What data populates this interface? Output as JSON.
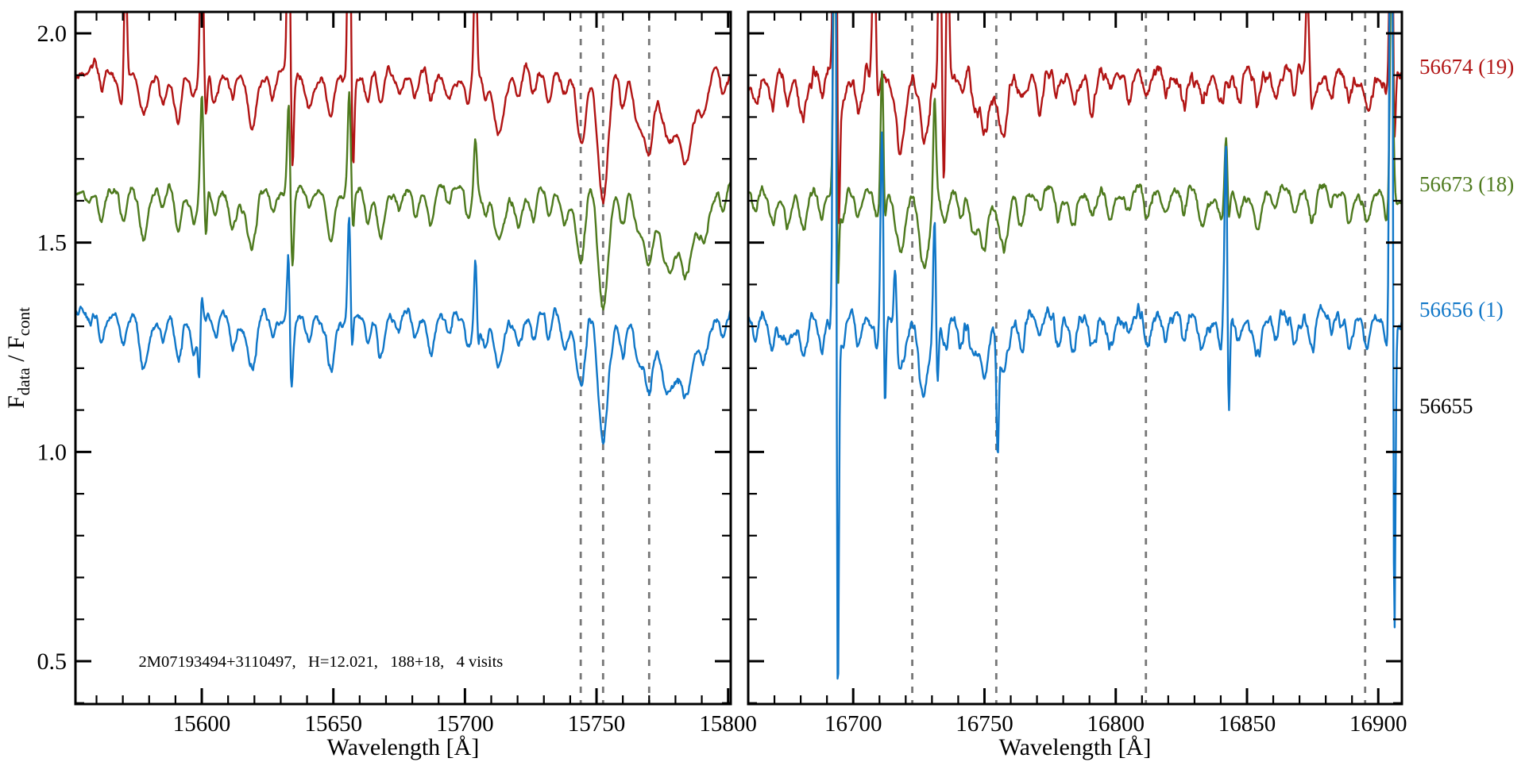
{
  "figure": {
    "background": "#ffffff",
    "axis_color": "#000000",
    "dashed_line_color": "#777777",
    "text_color": "#000000"
  },
  "chart_data": {
    "type": "line",
    "title": "",
    "xlabel": "Wavelength [Å]",
    "ylabel": "F_data / F_cont",
    "ylabel_rich": [
      {
        "t": "F",
        "sub": false
      },
      {
        "t": "data",
        "sub": true
      },
      {
        "t": " / F",
        "sub": false
      },
      {
        "t": "cont",
        "sub": true
      }
    ],
    "ylim": [
      0.397,
      2.051
    ],
    "yticks_major": [
      0.5,
      1.0,
      1.5,
      2.0
    ],
    "ytick_labels": [
      "0.5",
      "1.0",
      "1.5",
      "2.0"
    ],
    "ytick_minor_step": 0.1,
    "legend_position": "right-margin",
    "grid": false,
    "annotation": {
      "text": "2M07193494+3110497,   H=12.021,   188+18,   4 visits",
      "wavelength": 15576,
      "flux": 0.5
    },
    "panels": [
      {
        "name": "left",
        "xlim": [
          15552,
          15801
        ],
        "xticks_major": [
          15600,
          15650,
          15700,
          15750,
          15800
        ],
        "xtick_labels": [
          "15600",
          "15650",
          "15700",
          "15750",
          "15800"
        ],
        "xtick_minor_step": 10,
        "dashed_lines": [
          15744,
          15752.5,
          15770
        ],
        "absorption_lines": [
          [
            15562,
            0.05,
            1.0
          ],
          [
            15570,
            0.09,
            1.2
          ],
          [
            15578,
            0.11,
            1.5
          ],
          [
            15585,
            0.05,
            1.0
          ],
          [
            15591,
            0.09,
            1.3
          ],
          [
            15597,
            0.06,
            1.0
          ],
          [
            15605,
            0.05,
            1.0
          ],
          [
            15612,
            0.07,
            1.2
          ],
          [
            15619,
            0.13,
            1.8
          ],
          [
            15627,
            0.06,
            1.0
          ],
          [
            15634,
            0.07,
            1.0
          ],
          [
            15641,
            0.06,
            1.2
          ],
          [
            15649,
            0.1,
            1.4
          ],
          [
            15663,
            0.06,
            1.0
          ],
          [
            15668,
            0.08,
            1.3
          ],
          [
            15675,
            0.05,
            1.0
          ],
          [
            15681,
            0.06,
            1.0
          ],
          [
            15687,
            0.07,
            1.2
          ],
          [
            15694,
            0.05,
            1.0
          ],
          [
            15701,
            0.06,
            1.0
          ],
          [
            15708,
            0.05,
            1.0
          ],
          [
            15713,
            0.12,
            1.8
          ],
          [
            15720,
            0.06,
            1.2
          ],
          [
            15726,
            0.05,
            1.0
          ],
          [
            15732,
            0.06,
            1.0
          ],
          [
            15738,
            0.07,
            1.2
          ],
          [
            15744,
            0.17,
            1.6
          ],
          [
            15752.5,
            0.3,
            1.8
          ],
          [
            15760,
            0.07,
            1.2
          ],
          [
            15766,
            0.1,
            1.5
          ],
          [
            15770,
            0.17,
            1.8
          ],
          [
            15777,
            0.16,
            2.2
          ],
          [
            15784,
            0.2,
            3.0
          ],
          [
            15791,
            0.1,
            1.5
          ],
          [
            15798,
            0.05,
            1.0
          ]
        ]
      },
      {
        "name": "right",
        "xlim": [
          16660,
          16909
        ],
        "xticks_major": [
          16700,
          16750,
          16800,
          16850,
          16900
        ],
        "xtick_labels": [
          "16700",
          "16750",
          "16800",
          "16850",
          "16900"
        ],
        "xtick_minor_step": 10,
        "dashed_lines": [
          16722.5,
          16754.5,
          16811.5,
          16895
        ],
        "absorption_lines": [
          [
            16663,
            0.05,
            1.0
          ],
          [
            16669,
            0.07,
            1.2
          ],
          [
            16675,
            0.06,
            1.0
          ],
          [
            16681,
            0.09,
            1.4
          ],
          [
            16688,
            0.06,
            1.0
          ],
          [
            16696,
            0.07,
            1.2
          ],
          [
            16702,
            0.08,
            1.3
          ],
          [
            16709,
            0.06,
            1.0
          ],
          [
            16718,
            0.15,
            1.8
          ],
          [
            16727,
            0.16,
            1.8
          ],
          [
            16735,
            0.07,
            1.2
          ],
          [
            16741,
            0.06,
            1.0
          ],
          [
            16746,
            0.08,
            1.2
          ],
          [
            16750,
            0.14,
            1.6
          ],
          [
            16757,
            0.15,
            2.0
          ],
          [
            16764,
            0.07,
            1.2
          ],
          [
            16771,
            0.06,
            1.0
          ],
          [
            16778,
            0.05,
            1.0
          ],
          [
            16784,
            0.06,
            1.0
          ],
          [
            16791,
            0.07,
            1.2
          ],
          [
            16798,
            0.05,
            1.0
          ],
          [
            16805,
            0.06,
            1.0
          ],
          [
            16812,
            0.07,
            1.3
          ],
          [
            16819,
            0.05,
            1.0
          ],
          [
            16826,
            0.06,
            1.1
          ],
          [
            16833,
            0.07,
            1.2
          ],
          [
            16840,
            0.05,
            1.0
          ],
          [
            16847,
            0.06,
            1.0
          ],
          [
            16854,
            0.07,
            1.2
          ],
          [
            16861,
            0.05,
            1.0
          ],
          [
            16868,
            0.06,
            1.0
          ],
          [
            16875,
            0.07,
            1.2
          ],
          [
            16882,
            0.05,
            1.0
          ],
          [
            16889,
            0.06,
            1.0
          ],
          [
            16896,
            0.07,
            1.2
          ],
          [
            16903,
            0.05,
            1.0
          ]
        ]
      }
    ],
    "series": [
      {
        "label": "56674 (19)",
        "color": "#b11414",
        "baseline": 1.9,
        "label_flux": 1.92,
        "seed": 11,
        "noise": [
          0.011,
          0.019
        ],
        "spikes_up": {
          "left": [
            [
              15571,
              0.35
            ],
            [
              15600,
              0.45
            ],
            [
              15633,
              0.5
            ],
            [
              15656,
              0.55
            ],
            [
              15704,
              0.28
            ]
          ],
          "right": [
            [
              16693,
              1.0
            ],
            [
              16708,
              0.45
            ],
            [
              16733,
              0.5
            ],
            [
              16736,
              0.4
            ],
            [
              16873,
              0.22
            ],
            [
              16905,
              0.8
            ]
          ]
        },
        "spikes_down": {
          "left": [
            [
              15601.5,
              0.1
            ],
            [
              15634.5,
              0.16
            ],
            [
              15657.5,
              0.2
            ]
          ],
          "right": [
            [
              16694.5,
              0.35
            ],
            [
              16734.5,
              0.2
            ],
            [
              16906,
              0.25
            ]
          ]
        }
      },
      {
        "label": "56673 (18)",
        "color": "#4e7a1e",
        "baseline": 1.62,
        "label_flux": 1.64,
        "seed": 22,
        "noise": [
          0.011,
          0.013
        ],
        "spikes_up": {
          "left": [
            [
              15600,
              0.25
            ],
            [
              15633,
              0.26
            ],
            [
              15656,
              0.24
            ],
            [
              15704,
              0.14
            ]
          ],
          "right": [
            [
              16693,
              0.8
            ],
            [
              16711,
              0.33
            ],
            [
              16731,
              0.25
            ],
            [
              16842,
              0.14
            ],
            [
              16905,
              0.6
            ]
          ]
        },
        "spikes_down": {
          "left": [
            [
              15601.5,
              0.1
            ],
            [
              15634.5,
              0.12
            ],
            [
              15657.5,
              0.1
            ]
          ],
          "right": [
            [
              16694,
              0.3
            ],
            [
              16712,
              0.1
            ],
            [
              16843,
              0.08
            ]
          ]
        }
      },
      {
        "label": "56656 (1)",
        "color": "#1077c8",
        "baseline": 1.32,
        "label_flux": 1.34,
        "seed": 33,
        "noise": [
          0.014,
          0.019
        ],
        "spikes_up": {
          "left": [
            [
              15600,
              0.08
            ],
            [
              15633,
              0.2
            ],
            [
              15656,
              0.25
            ],
            [
              15704,
              0.15
            ]
          ],
          "right": [
            [
              16693,
              2.0
            ],
            [
              16711,
              0.5
            ],
            [
              16716,
              0.2
            ],
            [
              16731,
              0.28
            ],
            [
              16842,
              0.45
            ],
            [
              16905,
              2.0
            ]
          ]
        },
        "spikes_down": {
          "left": [
            [
              15599,
              0.14
            ],
            [
              15634,
              0.12
            ],
            [
              15657,
              0.1
            ],
            [
              15705,
              0.06
            ]
          ],
          "right": [
            [
              16694,
              1.2
            ],
            [
              16712,
              0.28
            ],
            [
              16732,
              0.2
            ],
            [
              16755,
              0.26
            ],
            [
              16843,
              0.3
            ],
            [
              16906,
              1.0
            ]
          ]
        }
      },
      {
        "label": "56655",
        "color": "#000000",
        "baseline": null,
        "label_flux": 1.11,
        "seed": 44,
        "noise": [
          0,
          0
        ],
        "no_data": true,
        "spikes_up": {
          "left": [],
          "right": []
        },
        "spikes_down": {
          "left": [],
          "right": []
        }
      }
    ]
  }
}
